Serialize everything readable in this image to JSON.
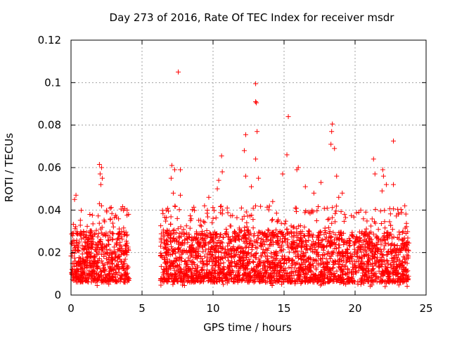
{
  "chart_data": {
    "type": "scatter",
    "title": "Day 273 of 2016, Rate Of TEC Index for receiver msdr",
    "xlabel": "GPS time / hours",
    "ylabel": "ROTI / TECUs",
    "xlim": [
      0,
      25
    ],
    "ylim": [
      0,
      0.12
    ],
    "grid": true,
    "marker": "+",
    "x_ticks": [
      0,
      5,
      10,
      15,
      20,
      25
    ],
    "x_tick_labels": [
      "0",
      "5",
      "10",
      "15",
      "20",
      "25"
    ],
    "y_ticks": [
      0,
      0.02,
      0.04,
      0.06,
      0.08,
      0.1,
      0.12
    ],
    "y_tick_labels": [
      "0",
      "0.02",
      "0.04",
      "0.06",
      "0.08",
      "0.1",
      "0.12"
    ],
    "colors": {
      "series": "#ff0000",
      "grid": "#a0a0a0",
      "axis": "#000000"
    },
    "series": [
      {
        "name": "ROTI",
        "segments": [
          [
            0.0,
            4.1
          ],
          [
            6.3,
            23.8
          ]
        ],
        "typical_range": [
          0.006,
          0.03
        ],
        "points": [
          [
            7.55,
            0.105
          ],
          [
            13.0,
            0.0995
          ],
          [
            13.0,
            0.091
          ],
          [
            13.05,
            0.0905
          ],
          [
            15.3,
            0.084
          ],
          [
            18.4,
            0.0805
          ],
          [
            18.35,
            0.077
          ],
          [
            13.1,
            0.077
          ],
          [
            12.3,
            0.0755
          ],
          [
            22.7,
            0.0725
          ],
          [
            18.3,
            0.071
          ],
          [
            18.55,
            0.069
          ],
          [
            12.2,
            0.068
          ],
          [
            15.2,
            0.066
          ],
          [
            10.6,
            0.0655
          ],
          [
            13.0,
            0.064
          ],
          [
            2.0,
            0.0615
          ],
          [
            2.15,
            0.06
          ],
          [
            7.1,
            0.061
          ],
          [
            7.3,
            0.059
          ],
          [
            7.7,
            0.059
          ],
          [
            15.9,
            0.059
          ],
          [
            21.3,
            0.064
          ],
          [
            21.95,
            0.059
          ],
          [
            2.05,
            0.057
          ],
          [
            2.2,
            0.055
          ],
          [
            2.1,
            0.052
          ],
          [
            7.05,
            0.055
          ],
          [
            10.4,
            0.054
          ],
          [
            12.3,
            0.056
          ],
          [
            13.2,
            0.055
          ],
          [
            16.0,
            0.06
          ],
          [
            17.6,
            0.053
          ],
          [
            18.7,
            0.056
          ],
          [
            21.4,
            0.057
          ],
          [
            22.0,
            0.056
          ],
          [
            22.2,
            0.052
          ],
          [
            14.9,
            0.057
          ],
          [
            10.3,
            0.05
          ],
          [
            10.65,
            0.058
          ],
          [
            12.7,
            0.051
          ],
          [
            16.5,
            0.051
          ],
          [
            17.1,
            0.048
          ],
          [
            19.1,
            0.048
          ],
          [
            21.9,
            0.049
          ],
          [
            22.7,
            0.052
          ],
          [
            2.0,
            0.043
          ],
          [
            2.15,
            0.042
          ],
          [
            0.35,
            0.047
          ],
          [
            0.25,
            0.045
          ],
          [
            7.2,
            0.048
          ],
          [
            7.7,
            0.047
          ],
          [
            9.7,
            0.046
          ],
          [
            12.0,
            0.041
          ],
          [
            14.2,
            0.044
          ],
          [
            18.85,
            0.046
          ],
          [
            3.95,
            0.04
          ],
          [
            4.05,
            0.038
          ],
          [
            6.7,
            0.04
          ],
          [
            9.4,
            0.042
          ],
          [
            11.0,
            0.041
          ],
          [
            15.8,
            0.041
          ],
          [
            20.4,
            0.04
          ],
          [
            23.5,
            0.042
          ]
        ]
      }
    ]
  }
}
